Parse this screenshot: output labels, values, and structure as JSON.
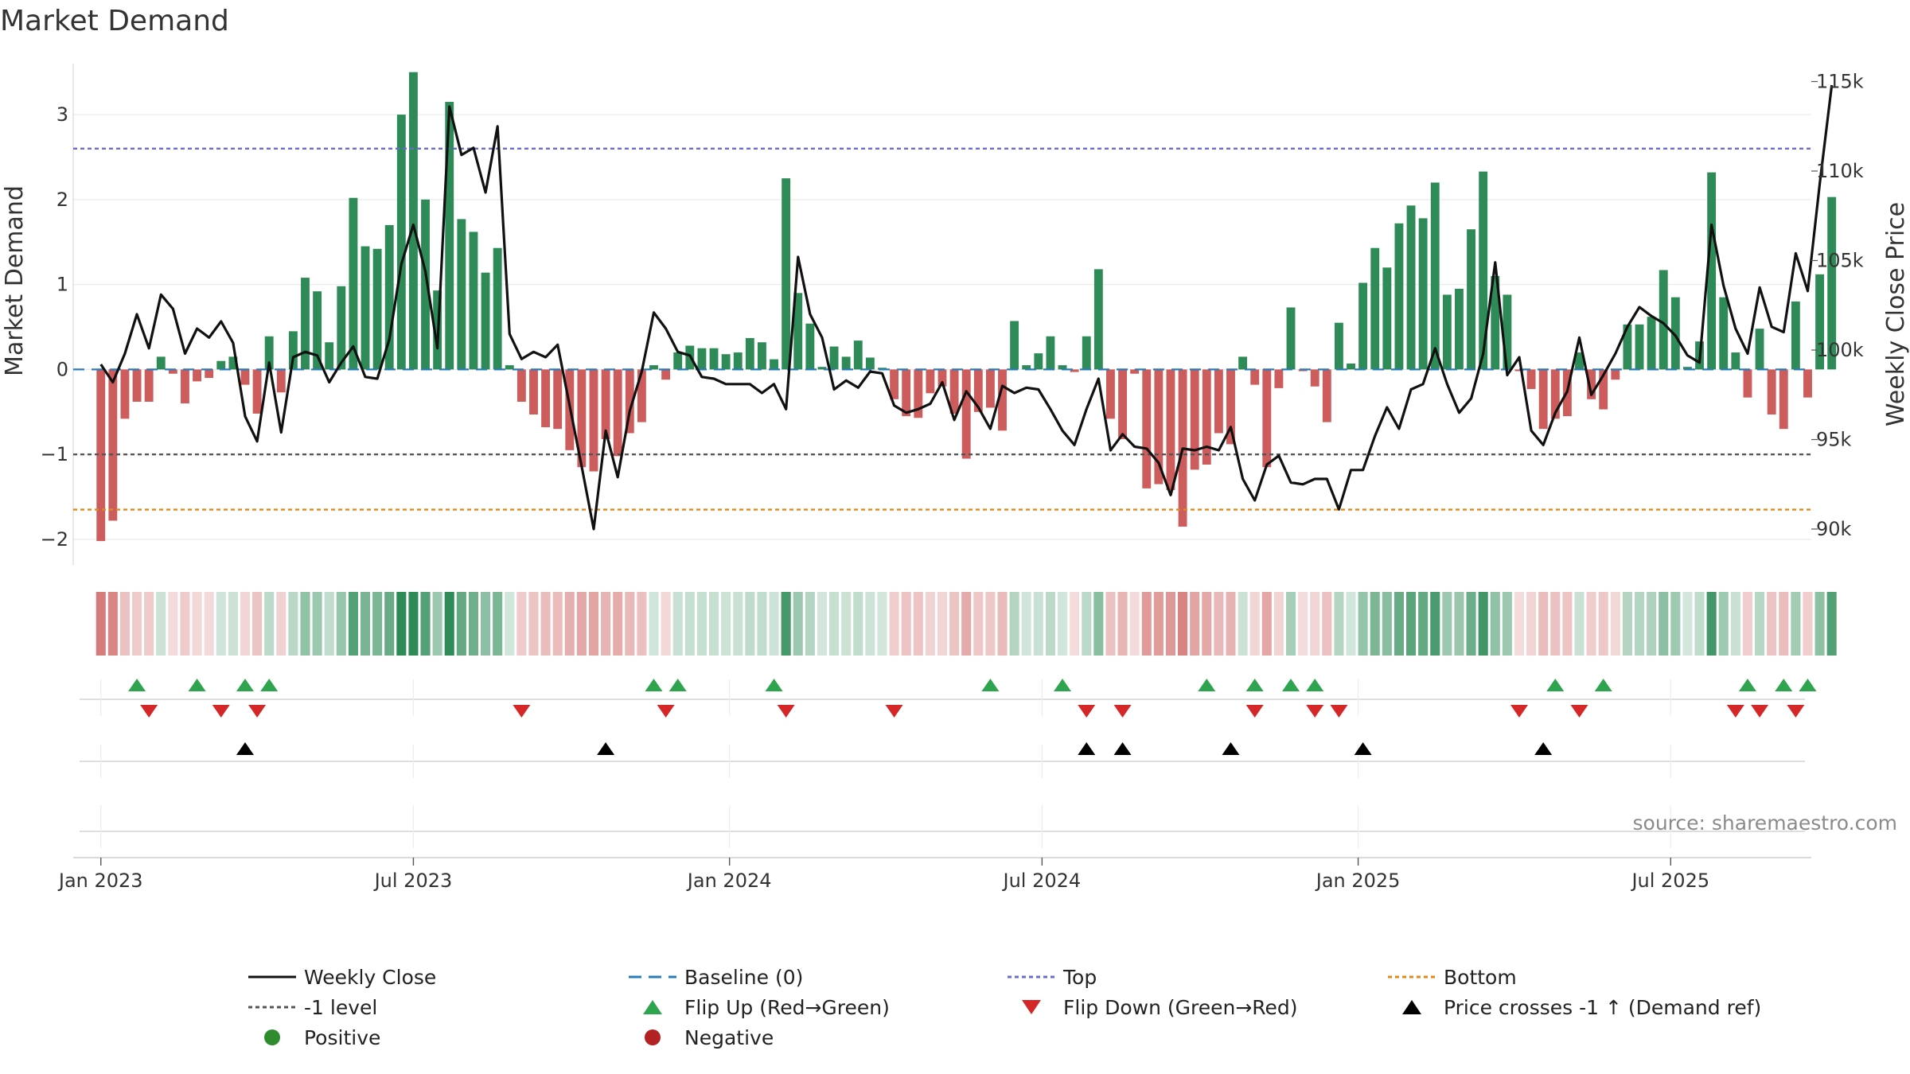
{
  "chart_data": {
    "type": "bar",
    "title": "Market Demand",
    "ylabel_left": "Market Demand",
    "ylabel_right": "Weekly Close Price",
    "ylim_left": [
      -2.3,
      3.6
    ],
    "ylim_right": [
      88000,
      116000
    ],
    "y_ticks_left": [
      {
        "v": 3,
        "label": "3"
      },
      {
        "v": 2,
        "label": "2"
      },
      {
        "v": 1,
        "label": "1"
      },
      {
        "v": 0,
        "label": "0"
      },
      {
        "v": -1,
        "label": "−1"
      },
      {
        "v": -2,
        "label": "−2"
      }
    ],
    "y_ticks_right": [
      {
        "v": 115000,
        "label": "115k"
      },
      {
        "v": 110000,
        "label": "110k"
      },
      {
        "v": 105000,
        "label": "105k"
      },
      {
        "v": 100000,
        "label": "100k"
      },
      {
        "v": 95000,
        "label": "95k"
      },
      {
        "v": 90000,
        "label": "90k"
      }
    ],
    "x_range_weeks": [
      -2.3,
      142.3
    ],
    "x_ticks": [
      {
        "week": 0,
        "label": "Jan 2023"
      },
      {
        "week": 26,
        "label": "Jul 2023"
      },
      {
        "week": 52.3,
        "label": "Jan 2024"
      },
      {
        "week": 78.3,
        "label": "Jul 2024"
      },
      {
        "week": 104.6,
        "label": "Jan 2025"
      },
      {
        "week": 130.6,
        "label": "Jul 2025"
      }
    ],
    "reference_lines": {
      "baseline": 0,
      "top": 2.6,
      "minus_one": -1,
      "bottom": -1.65
    },
    "demand": [
      -2.02,
      -1.78,
      -0.58,
      -0.38,
      -0.38,
      0.15,
      -0.05,
      -0.4,
      -0.14,
      -0.1,
      0.1,
      0.15,
      -0.18,
      -0.52,
      0.39,
      -0.27,
      0.45,
      1.08,
      0.92,
      0.32,
      0.98,
      2.02,
      1.45,
      1.42,
      1.7,
      3.0,
      3.5,
      2.0,
      0.93,
      3.15,
      1.77,
      1.62,
      1.14,
      1.43,
      0.05,
      -0.38,
      -0.53,
      -0.68,
      -0.7,
      -0.95,
      -1.15,
      -1.2,
      -0.82,
      -1.02,
      -0.75,
      -0.62,
      0.05,
      -0.12,
      0.2,
      0.28,
      0.25,
      0.25,
      0.18,
      0.2,
      0.37,
      0.32,
      0.12,
      2.25,
      0.9,
      0.54,
      0.03,
      0.27,
      0.15,
      0.34,
      0.14,
      0.02,
      -0.35,
      -0.55,
      -0.57,
      -0.28,
      -0.2,
      -0.52,
      -1.05,
      -0.5,
      -0.45,
      -0.72,
      0.57,
      0.05,
      0.19,
      0.39,
      0.05,
      -0.03,
      0.39,
      1.18,
      -0.58,
      -0.82,
      -0.05,
      -1.4,
      -1.35,
      -1.42,
      -1.85,
      -1.18,
      -1.12,
      -0.75,
      -0.88,
      0.15,
      -0.18,
      -1.15,
      -0.22,
      0.73,
      -0.02,
      -0.2,
      -0.62,
      0.55,
      0.07,
      1.02,
      1.43,
      1.2,
      1.72,
      1.93,
      1.78,
      2.2,
      0.88,
      0.95,
      1.65,
      2.33,
      1.1,
      0.88,
      -0.02,
      -0.23,
      -0.7,
      -0.58,
      -0.55,
      0.2,
      -0.35,
      -0.47,
      -0.12,
      0.53,
      0.53,
      0.62,
      1.17,
      0.85,
      0.03,
      0.33,
      2.32,
      0.85,
      0.2,
      -0.33,
      0.48,
      -0.53,
      -0.7,
      0.8,
      -0.33,
      1.12,
      2.03
    ],
    "weekly_close": [
      99200,
      98200,
      99800,
      102000,
      100100,
      103100,
      102300,
      99800,
      101200,
      100700,
      101600,
      100400,
      96300,
      94900,
      99300,
      95400,
      99600,
      99900,
      99700,
      98200,
      99300,
      100200,
      98500,
      98400,
      100600,
      104800,
      107000,
      104400,
      100100,
      113600,
      110900,
      111300,
      108800,
      112500,
      100900,
      99500,
      99900,
      99600,
      100300,
      96900,
      93500,
      90000,
      95500,
      92900,
      96600,
      98800,
      102100,
      101200,
      99900,
      99700,
      98500,
      98400,
      98100,
      98100,
      98100,
      97600,
      98100,
      96700,
      105200,
      102000,
      100700,
      97800,
      98300,
      97900,
      98800,
      98700,
      96900,
      96500,
      96700,
      97000,
      98200,
      96100,
      97700,
      96800,
      95600,
      98000,
      97600,
      97900,
      97800,
      96700,
      95500,
      94700,
      96700,
      98400,
      94400,
      95300,
      94600,
      94500,
      93700,
      91900,
      94500,
      94400,
      94600,
      94400,
      95700,
      92800,
      91600,
      93600,
      94100,
      92600,
      92500,
      92800,
      92800,
      91100,
      93300,
      93300,
      95200,
      96800,
      95600,
      97800,
      98100,
      100100,
      98100,
      96500,
      97300,
      99800,
      104900,
      98600,
      99600,
      95500,
      94700,
      96500,
      97700,
      100700,
      97500,
      98600,
      99800,
      101300,
      102400,
      101900,
      101500,
      100800,
      99700,
      99300,
      107000,
      103600,
      101200,
      99800,
      103500,
      101300,
      101000,
      105400,
      103300,
      109300,
      114800
    ],
    "flip_up_weeks": [
      3,
      8,
      12,
      14,
      46,
      48,
      56,
      74,
      80,
      92,
      96,
      99,
      101,
      121,
      125,
      137,
      140,
      142
    ],
    "flip_down_weeks": [
      4,
      10,
      13,
      35,
      47,
      57,
      66,
      82,
      85,
      96,
      101,
      103,
      118,
      123,
      136,
      138,
      141
    ],
    "price_cross_weeks": [
      12,
      42,
      82,
      85,
      94,
      105,
      120
    ],
    "source": "source: sharemaestro.com",
    "legend": [
      {
        "label": "Weekly Close",
        "kind": "solid-line",
        "color": "#111111"
      },
      {
        "label": "Baseline (0)",
        "kind": "dashed-line",
        "color": "#2b7bba"
      },
      {
        "label": "Top",
        "kind": "dotted-line",
        "color": "#6b6bc9"
      },
      {
        "label": "Bottom",
        "kind": "dotted-line",
        "color": "#e08a1e"
      },
      {
        "label": "-1 level",
        "kind": "dotted-line",
        "color": "#555555"
      },
      {
        "label": "Flip Up (Red→Green)",
        "kind": "triangle-up",
        "color": "#2ea44f"
      },
      {
        "label": "Flip Down (Green→Red)",
        "kind": "triangle-down",
        "color": "#d62728"
      },
      {
        "label": "Price crosses -1 ↑ (Demand ref)",
        "kind": "triangle-up",
        "color": "#000000"
      },
      {
        "label": "Positive",
        "kind": "circle",
        "color": "#2e8b2e"
      },
      {
        "label": "Negative",
        "kind": "circle",
        "color": "#b22222"
      }
    ],
    "colors": {
      "positive_bar": "#2e8b57",
      "negative_bar": "#cd5c5c",
      "price_line": "#111111",
      "flip_up": "#2ea44f",
      "flip_down": "#d62728",
      "cross": "#000000"
    }
  }
}
